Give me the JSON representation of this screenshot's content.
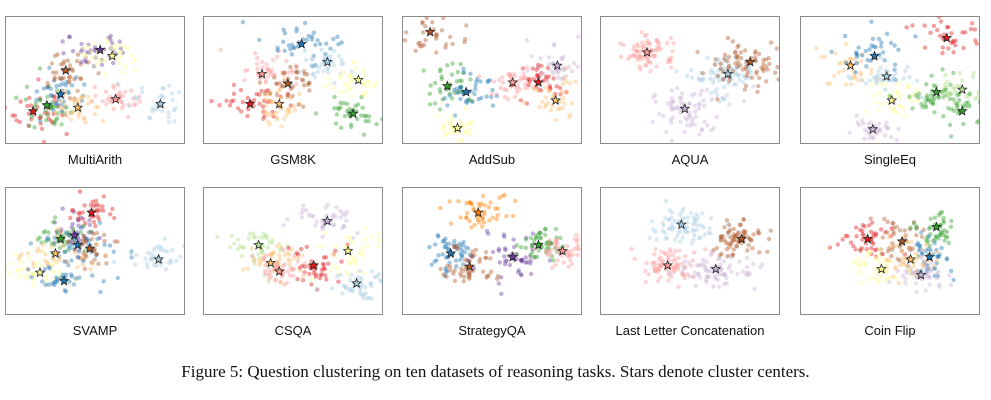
{
  "caption": "Figure 5: Question clustering on ten datasets of reasoning tasks. Stars denote cluster centers.",
  "chart_data": [
    {
      "type": "scatter",
      "title": "MultiArith",
      "xlim": [
        0,
        100
      ],
      "ylim": [
        0,
        100
      ],
      "legend": "none",
      "grid": false,
      "centers": [
        {
          "name": "center-1",
          "x": 14,
          "y": 24,
          "color": "#e31a1c"
        },
        {
          "name": "center-2",
          "x": 22,
          "y": 29,
          "color": "#33a02c"
        },
        {
          "name": "center-3",
          "x": 30,
          "y": 38,
          "color": "#1f78b4"
        },
        {
          "name": "center-4",
          "x": 33,
          "y": 58,
          "color": "#b15928"
        },
        {
          "name": "center-5",
          "x": 40,
          "y": 27,
          "color": "#fdbf6f"
        },
        {
          "name": "center-6",
          "x": 53,
          "y": 75,
          "color": "#6a3d9a"
        },
        {
          "name": "center-7",
          "x": 60,
          "y": 70,
          "color": "#ffff99"
        },
        {
          "name": "center-8",
          "x": 62,
          "y": 34,
          "color": "#fb9a99"
        },
        {
          "name": "center-9",
          "x": 88,
          "y": 30,
          "color": "#a6cee3"
        }
      ]
    },
    {
      "type": "scatter",
      "title": "GSM8K",
      "xlim": [
        0,
        100
      ],
      "ylim": [
        0,
        100
      ],
      "legend": "none",
      "grid": false,
      "centers": [
        {
          "name": "center-1",
          "x": 25,
          "y": 30,
          "color": "#e31a1c"
        },
        {
          "name": "center-2",
          "x": 32,
          "y": 55,
          "color": "#fb9a99"
        },
        {
          "name": "center-3",
          "x": 42,
          "y": 30,
          "color": "#fdbf6f"
        },
        {
          "name": "center-4",
          "x": 47,
          "y": 47,
          "color": "#b15928"
        },
        {
          "name": "center-5",
          "x": 55,
          "y": 80,
          "color": "#1f78b4"
        },
        {
          "name": "center-6",
          "x": 70,
          "y": 65,
          "color": "#a6cee3"
        },
        {
          "name": "center-7",
          "x": 85,
          "y": 22,
          "color": "#33a02c"
        },
        {
          "name": "center-8",
          "x": 88,
          "y": 50,
          "color": "#ffff99"
        }
      ]
    },
    {
      "type": "scatter",
      "title": "AddSub",
      "xlim": [
        0,
        100
      ],
      "ylim": [
        0,
        100
      ],
      "legend": "none",
      "grid": false,
      "centers": [
        {
          "name": "center-1",
          "x": 14,
          "y": 90,
          "color": "#b15928"
        },
        {
          "name": "center-2",
          "x": 24,
          "y": 45,
          "color": "#33a02c"
        },
        {
          "name": "center-3",
          "x": 35,
          "y": 40,
          "color": "#1f78b4"
        },
        {
          "name": "center-4",
          "x": 30,
          "y": 10,
          "color": "#ffff99"
        },
        {
          "name": "center-5",
          "x": 62,
          "y": 48,
          "color": "#fb9a99"
        },
        {
          "name": "center-6",
          "x": 77,
          "y": 48,
          "color": "#e31a1c"
        },
        {
          "name": "center-7",
          "x": 88,
          "y": 62,
          "color": "#cab2d6"
        },
        {
          "name": "center-8",
          "x": 87,
          "y": 33,
          "color": "#fdbf6f"
        }
      ]
    },
    {
      "type": "scatter",
      "title": "AQUA",
      "xlim": [
        0,
        100
      ],
      "ylim": [
        0,
        100
      ],
      "legend": "none",
      "grid": false,
      "centers": [
        {
          "name": "center-1",
          "x": 25,
          "y": 73,
          "color": "#fb9a99"
        },
        {
          "name": "center-2",
          "x": 47,
          "y": 26,
          "color": "#cab2d6"
        },
        {
          "name": "center-3",
          "x": 72,
          "y": 55,
          "color": "#a6cee3"
        },
        {
          "name": "center-4",
          "x": 85,
          "y": 65,
          "color": "#b15928"
        }
      ]
    },
    {
      "type": "scatter",
      "title": "SingleEq",
      "xlim": [
        0,
        100
      ],
      "ylim": [
        0,
        100
      ],
      "legend": "none",
      "grid": false,
      "centers": [
        {
          "name": "center-1",
          "x": 27,
          "y": 62,
          "color": "#fdbf6f"
        },
        {
          "name": "center-2",
          "x": 41,
          "y": 70,
          "color": "#1f78b4"
        },
        {
          "name": "center-3",
          "x": 48,
          "y": 53,
          "color": "#a6cee3"
        },
        {
          "name": "center-4",
          "x": 51,
          "y": 33,
          "color": "#ffff99"
        },
        {
          "name": "center-5",
          "x": 40,
          "y": 9,
          "color": "#cab2d6"
        },
        {
          "name": "center-6",
          "x": 77,
          "y": 40,
          "color": "#33a02c"
        },
        {
          "name": "center-7",
          "x": 92,
          "y": 42,
          "color": "#b2df8a"
        },
        {
          "name": "center-8",
          "x": 83,
          "y": 85,
          "color": "#e31a1c"
        },
        {
          "name": "center-9",
          "x": 92,
          "y": 24,
          "color": "#33a02c"
        }
      ]
    },
    {
      "type": "scatter",
      "title": "SVAMP",
      "xlim": [
        0,
        100
      ],
      "ylim": [
        0,
        100
      ],
      "legend": "none",
      "grid": false,
      "centers": [
        {
          "name": "center-1",
          "x": 48,
          "y": 82,
          "color": "#e31a1c"
        },
        {
          "name": "center-2",
          "x": 38,
          "y": 63,
          "color": "#6a3d9a"
        },
        {
          "name": "center-3",
          "x": 30,
          "y": 60,
          "color": "#33a02c"
        },
        {
          "name": "center-4",
          "x": 40,
          "y": 55,
          "color": "#1f78b4"
        },
        {
          "name": "center-5",
          "x": 47,
          "y": 52,
          "color": "#b15928"
        },
        {
          "name": "center-6",
          "x": 27,
          "y": 48,
          "color": "#fdbf6f"
        },
        {
          "name": "center-7",
          "x": 18,
          "y": 32,
          "color": "#ffff99"
        },
        {
          "name": "center-8",
          "x": 32,
          "y": 25,
          "color": "#1f78b4"
        },
        {
          "name": "center-9",
          "x": 87,
          "y": 43,
          "color": "#a6cee3"
        }
      ]
    },
    {
      "type": "scatter",
      "title": "CSQA",
      "xlim": [
        0,
        100
      ],
      "ylim": [
        0,
        100
      ],
      "legend": "none",
      "grid": false,
      "centers": [
        {
          "name": "center-1",
          "x": 30,
          "y": 55,
          "color": "#b2df8a"
        },
        {
          "name": "center-2",
          "x": 37,
          "y": 40,
          "color": "#fdbf6f"
        },
        {
          "name": "center-3",
          "x": 42,
          "y": 33,
          "color": "#fb9a99"
        },
        {
          "name": "center-4",
          "x": 62,
          "y": 38,
          "color": "#e31a1c"
        },
        {
          "name": "center-5",
          "x": 70,
          "y": 75,
          "color": "#cab2d6"
        },
        {
          "name": "center-6",
          "x": 82,
          "y": 50,
          "color": "#ffff99"
        },
        {
          "name": "center-7",
          "x": 87,
          "y": 23,
          "color": "#a6cee3"
        }
      ]
    },
    {
      "type": "scatter",
      "title": "StrategyQA",
      "xlim": [
        0,
        100
      ],
      "ylim": [
        0,
        100
      ],
      "legend": "none",
      "grid": false,
      "centers": [
        {
          "name": "center-1",
          "x": 42,
          "y": 82,
          "color": "#ff7f00"
        },
        {
          "name": "center-2",
          "x": 26,
          "y": 48,
          "color": "#1f78b4"
        },
        {
          "name": "center-3",
          "x": 37,
          "y": 37,
          "color": "#b15928"
        },
        {
          "name": "center-4",
          "x": 62,
          "y": 45,
          "color": "#6a3d9a"
        },
        {
          "name": "center-5",
          "x": 77,
          "y": 55,
          "color": "#33a02c"
        },
        {
          "name": "center-6",
          "x": 91,
          "y": 50,
          "color": "#fb9a99"
        }
      ]
    },
    {
      "type": "scatter",
      "title": "Last Letter Concatenation",
      "xlim": [
        0,
        100
      ],
      "ylim": [
        0,
        100
      ],
      "legend": "none",
      "grid": false,
      "centers": [
        {
          "name": "center-1",
          "x": 45,
          "y": 72,
          "color": "#a6cee3"
        },
        {
          "name": "center-2",
          "x": 37,
          "y": 38,
          "color": "#fb9a99"
        },
        {
          "name": "center-3",
          "x": 65,
          "y": 35,
          "color": "#cab2d6"
        },
        {
          "name": "center-4",
          "x": 80,
          "y": 60,
          "color": "#b15928"
        }
      ]
    },
    {
      "type": "scatter",
      "title": "Coin Flip",
      "xlim": [
        0,
        100
      ],
      "ylim": [
        0,
        100
      ],
      "legend": "none",
      "grid": false,
      "centers": [
        {
          "name": "center-1",
          "x": 37,
          "y": 60,
          "color": "#e31a1c"
        },
        {
          "name": "center-2",
          "x": 57,
          "y": 58,
          "color": "#b15928"
        },
        {
          "name": "center-3",
          "x": 77,
          "y": 70,
          "color": "#33a02c"
        },
        {
          "name": "center-4",
          "x": 73,
          "y": 45,
          "color": "#1f78b4"
        },
        {
          "name": "center-5",
          "x": 62,
          "y": 43,
          "color": "#fdbf6f"
        },
        {
          "name": "center-6",
          "x": 45,
          "y": 35,
          "color": "#ffff99"
        },
        {
          "name": "center-7",
          "x": 68,
          "y": 30,
          "color": "#cab2d6"
        }
      ]
    }
  ]
}
